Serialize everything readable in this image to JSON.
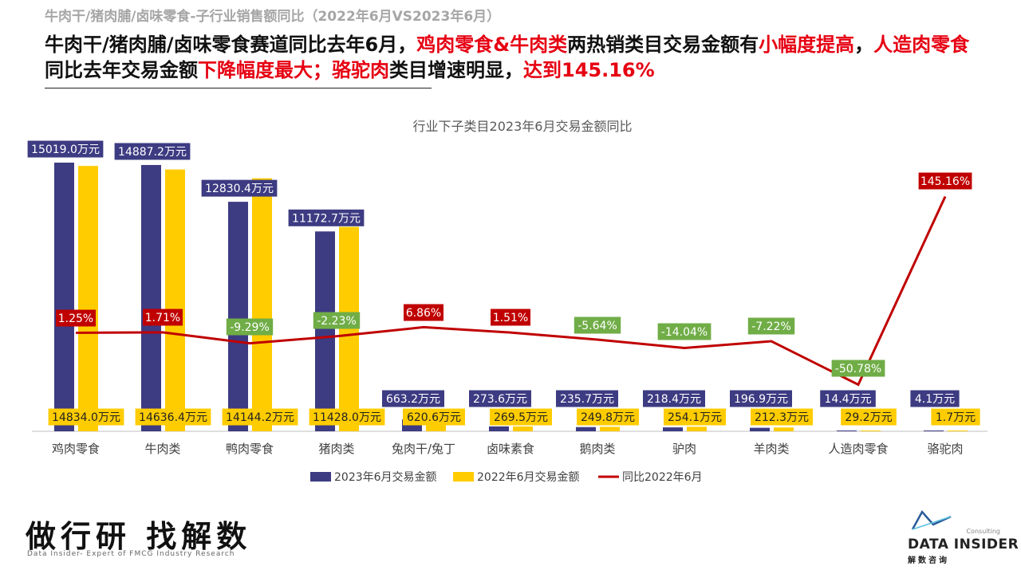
{
  "page": {
    "top_title": "牛肉干/猪肉脯/卤味零食-子行业销售额同比（2022年6月VS2023年6月）",
    "headline_parts": [
      {
        "text": "牛肉干/猪肉脯/卤味零食赛道同比去年6月，",
        "red": false
      },
      {
        "text": "鸡肉零食&牛肉类",
        "red": true
      },
      {
        "text": "两热销类目交易金额有",
        "red": false
      },
      {
        "text": "小幅度提高",
        "red": true
      },
      {
        "text": "，",
        "red": false
      },
      {
        "text": "人造肉零食",
        "red": true
      },
      {
        "text": "同比去年交易金额",
        "red": false
      },
      {
        "text": "下降幅度最大；",
        "red": true
      },
      {
        "text": "骆驼肉",
        "red": true
      },
      {
        "text": "类目增速明显，",
        "red": false
      },
      {
        "text": "达到145.16%",
        "red": true
      }
    ]
  },
  "footer": {
    "slogan": "做行研 找解数",
    "tagline": "Data Insider- Expert of FMCG Industry Research",
    "logo_small": "Consulting",
    "logo_name": "DATA INSIDER",
    "logo_cn": "解数咨询"
  },
  "colors": {
    "series_2023": "#3d3b82",
    "series_2022": "#ffcc00",
    "yoy_line": "#c00000",
    "positive_label": "#c00000",
    "negative_label": "#70ad47",
    "text_red": "#e60012"
  },
  "chart_data": {
    "type": "bar",
    "title": "行业下子类目2023年6月交易金额同比",
    "categories": [
      "鸡肉零食",
      "牛肉类",
      "鸭肉零食",
      "猪肉类",
      "兔肉干/兔丁",
      "卤味素食",
      "鹅肉类",
      "驴肉",
      "羊肉类",
      "人造肉零食",
      "骆驼肉"
    ],
    "unit_suffix": "万元",
    "series": [
      {
        "name": "2023年6月交易金额",
        "kind": "bar",
        "values": [
          15019.0,
          14887.2,
          12830.4,
          11172.7,
          663.2,
          273.6,
          235.7,
          218.4,
          196.9,
          14.4,
          4.1
        ]
      },
      {
        "name": "2022年6月交易金额",
        "kind": "bar",
        "values": [
          14834.0,
          14636.4,
          14144.2,
          11428.0,
          620.6,
          269.5,
          249.8,
          254.1,
          212.3,
          29.2,
          1.7
        ]
      },
      {
        "name": "同比2022年6月",
        "kind": "line",
        "values": [
          1.25,
          1.71,
          -9.29,
          -2.23,
          6.86,
          1.51,
          -5.64,
          -14.04,
          -7.22,
          -50.78,
          145.16
        ]
      }
    ],
    "legend_position": "bottom",
    "grid": false
  }
}
